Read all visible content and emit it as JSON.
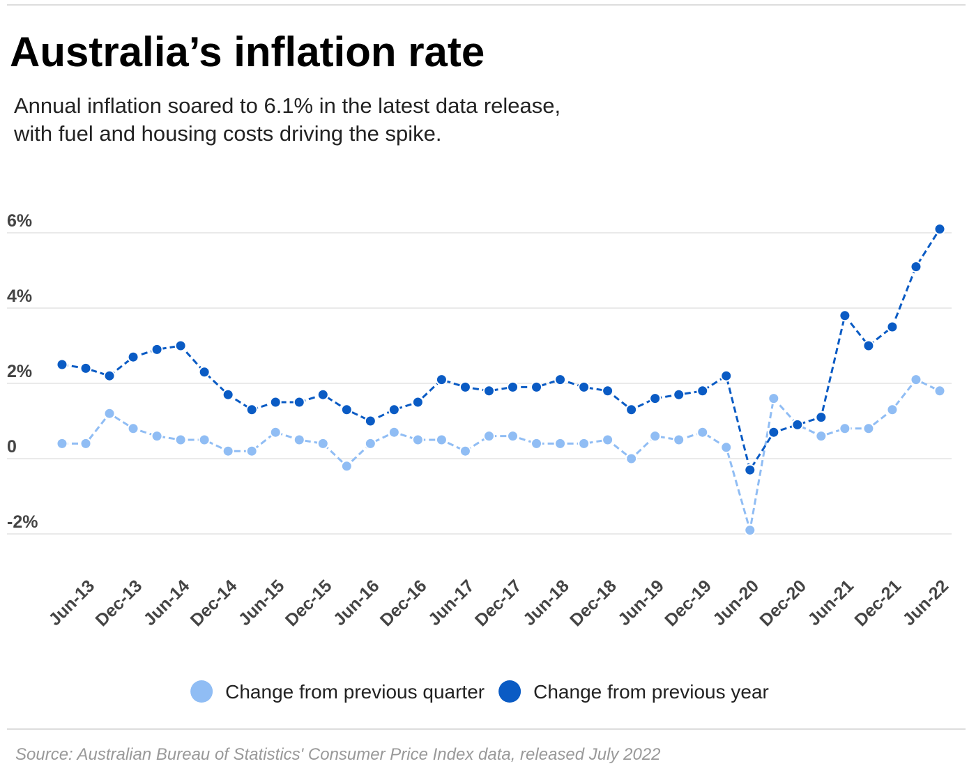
{
  "chart_data": {
    "type": "line",
    "title": "Australia’s inflation rate",
    "subtitle": [
      "Annual inflation soared to 6.1% in the latest data release,",
      "with fuel and housing costs driving the spike."
    ],
    "source": "Source: Australian Bureau of Statistics' Consumer Price Index data, released July 2022",
    "categories": [
      null,
      "Jun-13",
      null,
      "Dec-13",
      null,
      "Jun-14",
      null,
      "Dec-14",
      null,
      "Jun-15",
      null,
      "Dec-15",
      null,
      "Jun-16",
      null,
      "Dec-16",
      null,
      "Jun-17",
      null,
      "Dec-17",
      null,
      "Jun-18",
      null,
      "Dec-18",
      null,
      "Jun-19",
      null,
      "Dec-19",
      null,
      "Jun-20",
      null,
      "Dec-20",
      null,
      "Jun-21",
      null,
      "Dec-21",
      null,
      "Jun-22"
    ],
    "series": [
      {
        "name": "Change from previous quarter",
        "color": "#90bdf4",
        "values": [
          0.4,
          0.4,
          1.2,
          0.8,
          0.6,
          0.5,
          0.5,
          0.2,
          0.2,
          0.7,
          0.5,
          0.4,
          -0.2,
          0.4,
          0.7,
          0.5,
          0.5,
          0.2,
          0.6,
          0.6,
          0.4,
          0.4,
          0.4,
          0.5,
          0.0,
          0.6,
          0.5,
          0.7,
          0.3,
          -1.9,
          1.6,
          0.9,
          0.6,
          0.8,
          0.8,
          1.3,
          2.1,
          1.8
        ]
      },
      {
        "name": "Change from previous year",
        "color": "#0a5bc4",
        "values": [
          2.5,
          2.4,
          2.2,
          2.7,
          2.9,
          3.0,
          2.3,
          1.7,
          1.3,
          1.5,
          1.5,
          1.7,
          1.3,
          1.0,
          1.3,
          1.5,
          2.1,
          1.9,
          1.8,
          1.9,
          1.9,
          2.1,
          1.9,
          1.8,
          1.3,
          1.6,
          1.7,
          1.8,
          2.2,
          -0.3,
          0.7,
          0.9,
          1.1,
          3.8,
          3.0,
          3.5,
          5.1,
          6.1
        ]
      }
    ],
    "ylim": [
      -2.4,
      6.6
    ],
    "yticks": [
      {
        "value": 6,
        "label": "6%"
      },
      {
        "value": 4,
        "label": "4%"
      },
      {
        "value": 2,
        "label": "2%"
      },
      0,
      {
        "value": -2,
        "label": "-2%"
      }
    ],
    "grid": true,
    "legend": "bottom"
  }
}
